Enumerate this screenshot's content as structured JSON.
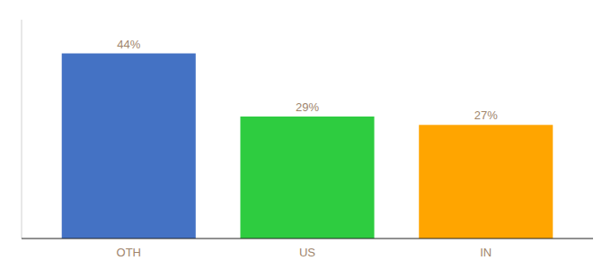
{
  "chart_data": {
    "type": "bar",
    "categories": [
      "OTH",
      "US",
      "IN"
    ],
    "values": [
      44,
      29,
      27
    ],
    "value_labels": [
      "44%",
      "29%",
      "27%"
    ],
    "data_labels": true,
    "colors": [
      "#4472C4",
      "#2ECC40",
      "#FFA500"
    ],
    "ylim": [
      0,
      52
    ],
    "tick_labels": "x",
    "grid": false
  }
}
